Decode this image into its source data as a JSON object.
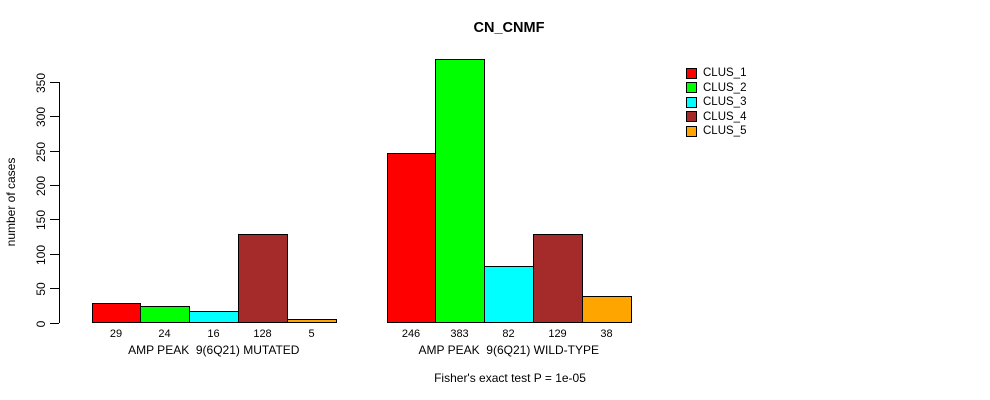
{
  "chart_data": {
    "type": "bar",
    "title": "CN_CNMF",
    "ylabel": "number of cases",
    "annotation": "Fisher's exact test P = 1e-05",
    "yticks": [
      0,
      50,
      100,
      150,
      200,
      250,
      300,
      350
    ],
    "ylim": [
      0,
      383
    ],
    "grid": false,
    "legend_position": "right",
    "bar_value_labels": true,
    "categories": [
      "AMP PEAK  9(6Q21) MUTATED",
      "AMP PEAK  9(6Q21) WILD-TYPE"
    ],
    "series": [
      {
        "name": "CLUS_1",
        "color": "#FF0000",
        "values": [
          29,
          246
        ]
      },
      {
        "name": "CLUS_2",
        "color": "#00FF00",
        "values": [
          24,
          383
        ]
      },
      {
        "name": "CLUS_3",
        "color": "#00FFFF",
        "values": [
          16,
          82
        ]
      },
      {
        "name": "CLUS_4",
        "color": "#A52A2A",
        "values": [
          128,
          129
        ]
      },
      {
        "name": "CLUS_5",
        "color": "#FFA500",
        "values": [
          5,
          38
        ]
      }
    ]
  }
}
